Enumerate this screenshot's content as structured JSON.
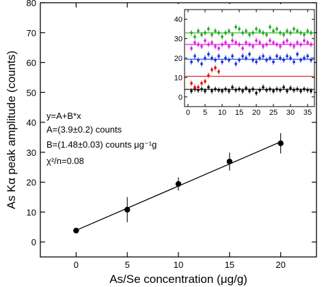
{
  "chart_data": [
    {
      "type": "scatter",
      "xlabel": "As/Se concentration (μg/g)",
      "ylabel": "As Kα peak amplitude (counts)",
      "xlim": [
        -3.5,
        23.5
      ],
      "ylim": [
        -5,
        80
      ],
      "xticks": [
        0,
        5,
        10,
        15,
        20
      ],
      "yticks": [
        0,
        10,
        20,
        30,
        40,
        50,
        60,
        70,
        80
      ],
      "grid": false,
      "points": [
        {
          "x": 0,
          "y": 3.8,
          "err": 0.8
        },
        {
          "x": 5,
          "y": 10.8,
          "err": 4.2
        },
        {
          "x": 10,
          "y": 19.4,
          "err": 2.2
        },
        {
          "x": 15,
          "y": 26.9,
          "err": 3.0
        },
        {
          "x": 20,
          "y": 33.0,
          "err": 3.4
        }
      ],
      "fit": {
        "x": [
          0,
          20
        ],
        "y": [
          3.9,
          33.5
        ]
      },
      "annotations": [
        "y=A+B*x",
        "A=(3.9±0.2) counts",
        "B=(1.48±0.03) counts μg⁻¹g",
        "χ²/n=0.08"
      ]
    },
    {
      "type": "scatter",
      "subtitle": "inset",
      "xlim": [
        -1,
        37
      ],
      "ylim": [
        -5,
        45
      ],
      "xticks": [
        0,
        5,
        10,
        15,
        20,
        25,
        30,
        35
      ],
      "yticks": [
        0,
        10,
        20,
        30,
        40
      ],
      "grid": false,
      "series": [
        {
          "color": "#111111",
          "level": 3.9,
          "x": [
            1,
            2,
            3,
            4,
            5,
            6,
            7,
            8,
            9,
            10,
            11,
            12,
            13,
            14,
            15,
            16,
            17,
            18,
            19,
            20,
            21,
            22,
            23,
            24,
            25,
            26,
            27,
            28,
            29,
            30,
            31,
            32,
            33,
            34,
            35,
            36
          ],
          "y": [
            3,
            4,
            3.5,
            4,
            3,
            5,
            3,
            4,
            3.5,
            3,
            4,
            3,
            5,
            3.5,
            4,
            3,
            4.5,
            3,
            4,
            2,
            3.5,
            5,
            3.5,
            4,
            3,
            4,
            3.5,
            5,
            3,
            4.5,
            3.5,
            4,
            3,
            4,
            3.5,
            3
          ]
        },
        {
          "color": "#dd1111",
          "level": 10.6,
          "x": [
            1,
            2,
            3,
            4,
            5,
            6,
            7,
            8,
            9
          ],
          "y": [
            7,
            5,
            5,
            7,
            8,
            11,
            14,
            15,
            13
          ]
        },
        {
          "color": "#1133dd",
          "level": 19.4,
          "x": [
            1,
            2,
            3,
            4,
            5,
            6,
            7,
            8,
            9,
            10,
            11,
            12,
            13,
            14,
            15,
            16,
            17,
            18,
            19,
            20,
            21,
            22,
            23,
            24,
            25,
            26,
            27,
            28,
            29,
            30,
            31,
            32,
            33,
            34,
            35,
            36
          ],
          "y": [
            18,
            21,
            19,
            17,
            20,
            22,
            20,
            19,
            21,
            18,
            20,
            19,
            21,
            17,
            19,
            21,
            20,
            22,
            19,
            18,
            20,
            21,
            19,
            20,
            18,
            21,
            20,
            19,
            21,
            20,
            18,
            22,
            19,
            20,
            21,
            19
          ]
        },
        {
          "color": "#dd22dd",
          "level": 27.0,
          "x": [
            1,
            2,
            3,
            4,
            5,
            6,
            7,
            8,
            9,
            10,
            11,
            12,
            13,
            14,
            15,
            16,
            17,
            18,
            19,
            20,
            21,
            22,
            23,
            24,
            25,
            26,
            27,
            28,
            29,
            30,
            31,
            32,
            33,
            34,
            35,
            36
          ],
          "y": [
            25,
            28,
            27,
            26,
            29,
            27,
            28,
            26,
            25,
            27,
            28,
            26,
            29,
            28,
            27,
            25,
            28,
            27,
            26,
            29,
            28,
            26,
            27,
            29,
            28,
            27,
            26,
            28,
            29,
            27,
            26,
            28,
            27,
            29,
            28,
            27
          ]
        },
        {
          "color": "#22aa22",
          "level": 33.0,
          "x": [
            1,
            2,
            3,
            4,
            5,
            6,
            7,
            8,
            9,
            10,
            11,
            12,
            13,
            14,
            15,
            16,
            17,
            18,
            19,
            20,
            21,
            22,
            23,
            24,
            25,
            26,
            27,
            28,
            29,
            30,
            31,
            32,
            33,
            34,
            35,
            36
          ],
          "y": [
            33,
            31,
            34,
            32,
            33,
            35,
            32,
            34,
            33,
            31,
            33,
            34,
            32,
            36,
            35,
            33,
            34,
            32,
            33,
            35,
            34,
            33,
            32,
            36,
            34,
            35,
            33,
            32,
            34,
            33,
            35,
            34,
            33,
            32,
            34,
            33
          ]
        }
      ]
    }
  ]
}
